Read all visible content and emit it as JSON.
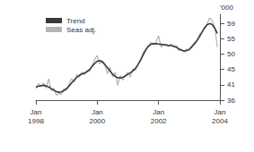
{
  "chart_data": {
    "type": "line",
    "y_label": "'000",
    "categories": [
      "Jan\n1998",
      null,
      null,
      null,
      null,
      null,
      null,
      null,
      null,
      null,
      null,
      null,
      null,
      null,
      null,
      null,
      null,
      null,
      null,
      null,
      null,
      null,
      null,
      null,
      "Jan\n2000",
      null,
      null,
      null,
      null,
      null,
      null,
      null,
      null,
      null,
      null,
      null,
      null,
      null,
      null,
      null,
      null,
      null,
      null,
      null,
      null,
      null,
      null,
      null,
      "Jan\n2002",
      null,
      null,
      null,
      null,
      null,
      null,
      null,
      null,
      null,
      null,
      null,
      null,
      null,
      null,
      null,
      null,
      null,
      null,
      null,
      null,
      null,
      null,
      null,
      "Jan\n2004"
    ],
    "series": [
      {
        "name": "Trend",
        "color": "#3a3a3a",
        "values": [
          40.0,
          40.2,
          40.4,
          40.5,
          40.3,
          40.0,
          39.5,
          39.0,
          38.6,
          38.4,
          38.5,
          38.9,
          39.5,
          40.3,
          41.2,
          42.1,
          42.9,
          43.5,
          43.9,
          44.2,
          44.6,
          45.3,
          46.2,
          47.1,
          47.8,
          48.0,
          47.6,
          46.8,
          45.8,
          44.8,
          43.9,
          43.2,
          42.8,
          42.7,
          42.9,
          43.3,
          43.8,
          44.3,
          44.9,
          45.7,
          46.8,
          48.2,
          49.8,
          51.2,
          52.3,
          52.9,
          53.1,
          53.1,
          53.0,
          52.9,
          52.8,
          52.7,
          52.6,
          52.5,
          52.3,
          52.0,
          51.5,
          51.1,
          50.9,
          51.0,
          51.4,
          52.1,
          53.0,
          54.0,
          55.2,
          56.6,
          57.9,
          58.8,
          59.2,
          58.9,
          57.8,
          56.2,
          null
        ]
      },
      {
        "name": "Seas adj.",
        "color": "#b4b4b4",
        "values": [
          39.5,
          41.0,
          40.0,
          41.2,
          39.6,
          42.5,
          38.8,
          39.6,
          37.5,
          38.0,
          37.8,
          39.5,
          39.0,
          41.0,
          42.5,
          41.5,
          43.8,
          43.0,
          44.5,
          43.7,
          45.0,
          44.6,
          46.5,
          48.3,
          49.5,
          47.0,
          48.0,
          46.5,
          44.0,
          46.0,
          43.0,
          44.5,
          40.5,
          43.5,
          42.0,
          43.5,
          44.5,
          43.0,
          45.5,
          45.0,
          47.0,
          48.0,
          50.5,
          51.5,
          52.5,
          53.5,
          52.8,
          53.5,
          55.5,
          52.0,
          53.0,
          52.8,
          52.2,
          53.0,
          52.0,
          52.5,
          51.0,
          51.5,
          50.5,
          51.5,
          51.0,
          52.5,
          53.5,
          53.8,
          56.0,
          56.5,
          58.0,
          59.0,
          61.0,
          60.0,
          58.0,
          52.0,
          null
        ]
      }
    ],
    "ylim": [
      36,
      62
    ],
    "yticks": [
      36,
      {
        "value": 40.65,
        "label": "41"
      },
      {
        "value": 45.3,
        "label": "45"
      },
      {
        "value": 49.95,
        "label": "50"
      },
      {
        "value": 54.6,
        "label": "55"
      },
      {
        "value": 59.25,
        "label": "59"
      }
    ],
    "grid": false,
    "legend": "upper left"
  }
}
